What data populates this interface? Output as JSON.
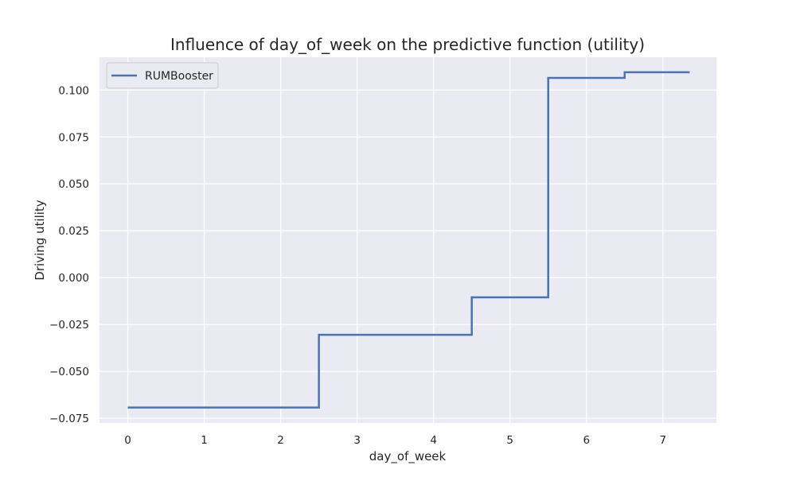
{
  "chart_data": {
    "type": "line",
    "step": "post",
    "title": "Influence of day_of_week on the predictive function (utility)",
    "xlabel": "day_of_week",
    "ylabel": "Driving utility",
    "xlim": [
      -0.37,
      7.7
    ],
    "ylim": [
      -0.0775,
      0.1175
    ],
    "xticks": [
      0,
      1,
      2,
      3,
      4,
      5,
      6,
      7
    ],
    "xtick_labels": [
      "0",
      "1",
      "2",
      "3",
      "4",
      "5",
      "6",
      "7"
    ],
    "yticks": [
      -0.075,
      -0.05,
      -0.025,
      0.0,
      0.025,
      0.05,
      0.075,
      0.1
    ],
    "ytick_labels": [
      "−0.075",
      "−0.050",
      "−0.025",
      "0.000",
      "0.025",
      "0.050",
      "0.075",
      "0.100"
    ],
    "grid": true,
    "legend_position": "top-left",
    "background_color": "#eaeaf2",
    "series": [
      {
        "name": "RUMBooster",
        "color": "#4c72b0",
        "x": [
          0,
          2.5,
          4.5,
          5.5,
          6.5,
          7.35
        ],
        "y": [
          -0.0693,
          -0.0305,
          -0.0105,
          0.1065,
          0.1095,
          0.1095
        ]
      }
    ]
  }
}
